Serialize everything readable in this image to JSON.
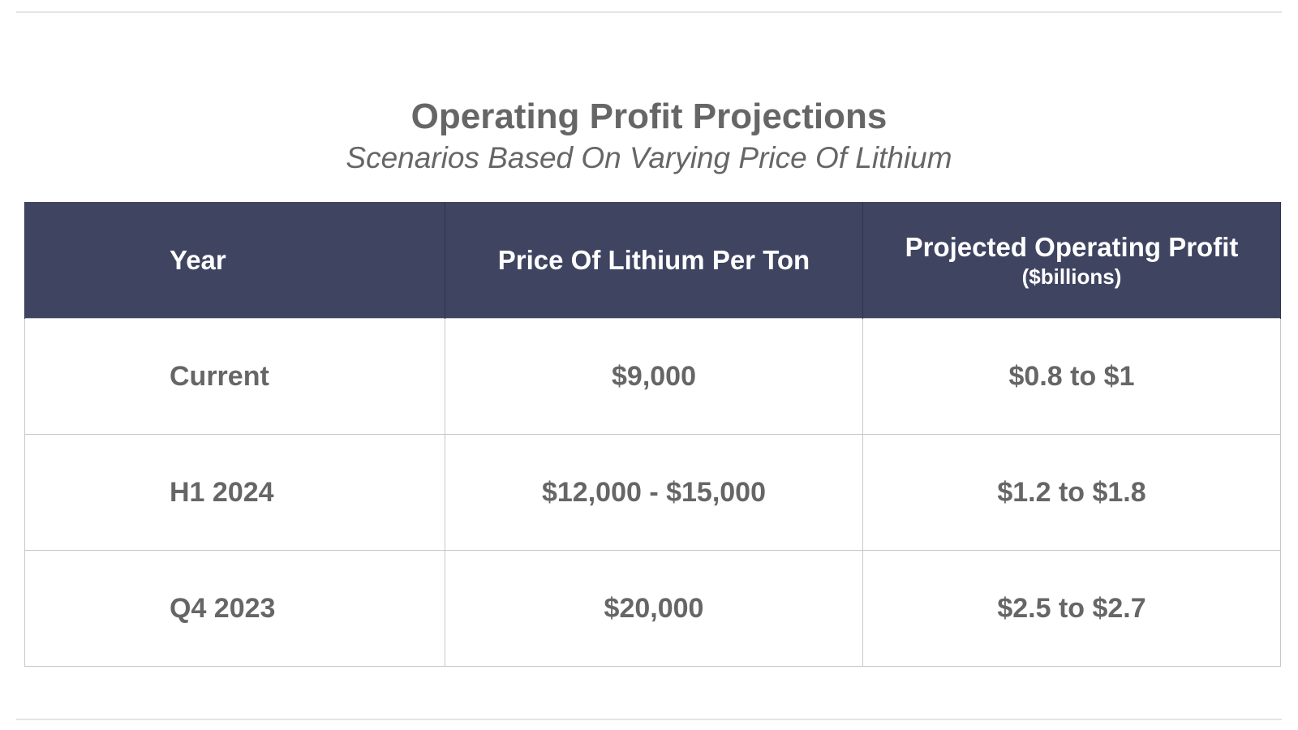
{
  "chart_data": {
    "type": "table",
    "title": "Operating Profit Projections",
    "subtitle": "Scenarios Based On Varying Price Of Lithium",
    "columns": [
      {
        "label": "Year"
      },
      {
        "label": "Price Of Lithium Per Ton"
      },
      {
        "label": "Projected Operating Profit",
        "sublabel": "($billions)"
      }
    ],
    "rows": [
      {
        "year": "Current",
        "price": "$9,000",
        "profit": "$0.8 to $1"
      },
      {
        "year": "H1 2024",
        "price": "$12,000 - $15,000",
        "profit": "$1.2 to $1.8"
      },
      {
        "year": "Q4 2023",
        "price": "$20,000",
        "profit": "$2.5 to $2.7"
      }
    ],
    "colors": {
      "header_background": "#3f4461",
      "header_text": "#ffffff",
      "body_text": "#666666",
      "cell_border": "#c8c8c8"
    }
  }
}
